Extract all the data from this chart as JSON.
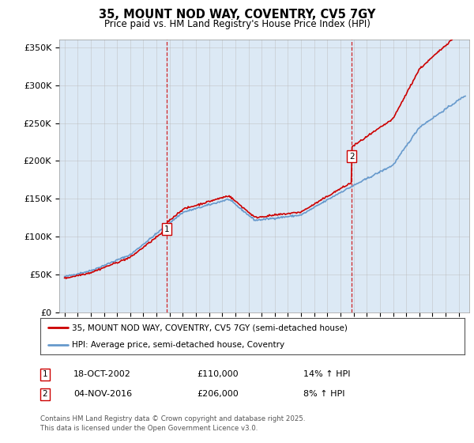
{
  "title": "35, MOUNT NOD WAY, COVENTRY, CV5 7GY",
  "subtitle": "Price paid vs. HM Land Registry's House Price Index (HPI)",
  "background_color": "#dce9f5",
  "plot_bg_color": "#dce9f5",
  "line1_color": "#cc0000",
  "line2_color": "#6699cc",
  "vline_color": "#cc0000",
  "grid_color": "#bbbbbb",
  "ylim": [
    0,
    360000
  ],
  "yticks": [
    0,
    50000,
    100000,
    150000,
    200000,
    250000,
    300000,
    350000
  ],
  "ytick_labels": [
    "£0",
    "£50K",
    "£100K",
    "£150K",
    "£200K",
    "£250K",
    "£300K",
    "£350K"
  ],
  "xlim_start": 1994.6,
  "xlim_end": 2025.8,
  "xticks": [
    1995,
    1996,
    1997,
    1998,
    1999,
    2000,
    2001,
    2002,
    2003,
    2004,
    2005,
    2006,
    2007,
    2008,
    2009,
    2010,
    2011,
    2012,
    2013,
    2014,
    2015,
    2016,
    2017,
    2018,
    2019,
    2020,
    2021,
    2022,
    2023,
    2024,
    2025
  ],
  "transaction1_x": 2002.8,
  "transaction1_y": 110000,
  "transaction1_label": "1",
  "transaction2_x": 2016.85,
  "transaction2_y": 206000,
  "transaction2_label": "2",
  "legend_line1": "35, MOUNT NOD WAY, COVENTRY, CV5 7GY (semi-detached house)",
  "legend_line2": "HPI: Average price, semi-detached house, Coventry",
  "annot1_date": "18-OCT-2002",
  "annot1_price": "£110,000",
  "annot1_hpi": "14% ↑ HPI",
  "annot2_date": "04-NOV-2016",
  "annot2_price": "£206,000",
  "annot2_hpi": "8% ↑ HPI",
  "footer": "Contains HM Land Registry data © Crown copyright and database right 2025.\nThis data is licensed under the Open Government Licence v3.0."
}
